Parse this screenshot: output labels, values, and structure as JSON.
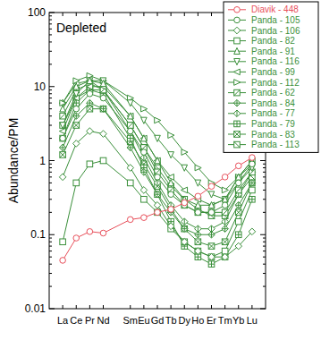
{
  "chart_data": {
    "type": "line",
    "log": "y",
    "legend": "top-right",
    "annotations": [
      "Depleted"
    ],
    "y_label": "Abundance/PM",
    "x": [
      57,
      58,
      59,
      60,
      62,
      63,
      64,
      65,
      66,
      67,
      68,
      69,
      70,
      71
    ],
    "xlim": [
      56,
      72
    ],
    "xticks": [
      {
        "value": 57,
        "label": "La"
      },
      {
        "value": 58,
        "label": "Ce"
      },
      {
        "value": 59,
        "label": "Pr"
      },
      {
        "value": 60,
        "label": "Nd"
      },
      {
        "value": 62,
        "label": "Sm"
      },
      {
        "value": 63,
        "label": "Eu"
      },
      {
        "value": 64,
        "label": "Gd"
      },
      {
        "value": 65,
        "label": "Tb"
      },
      {
        "value": 66,
        "label": "Dy"
      },
      {
        "value": 67,
        "label": "Ho"
      },
      {
        "value": 68,
        "label": "Er"
      },
      {
        "value": 69,
        "label": "Tm"
      },
      {
        "value": 70,
        "label": "Yb"
      },
      {
        "value": 71,
        "label": "Lu"
      }
    ],
    "ylim": [
      0.01,
      100
    ],
    "yticks": [
      0.01,
      0.1,
      1,
      10,
      100
    ],
    "series": [
      {
        "name": "Diavik - 448",
        "color": "#e8505b",
        "marker": "circle",
        "values": [
          0.045,
          0.09,
          0.11,
          0.105,
          0.16,
          0.17,
          0.2,
          0.22,
          0.27,
          0.33,
          0.45,
          0.6,
          0.85,
          1.1
        ]
      },
      {
        "name": "Panda - 105",
        "color": "#3a8f3a",
        "marker": "circle",
        "values": [
          2,
          5,
          8,
          7,
          2.5,
          1.3,
          0.6,
          0.35,
          0.25,
          0.2,
          0.2,
          0.25,
          0.5,
          0.9
        ]
      },
      {
        "name": "Panda - 106",
        "color": "#3a8f3a",
        "marker": "diamond",
        "values": [
          0.6,
          1.7,
          2.5,
          2.3,
          0.8,
          0.4,
          0.25,
          0.13,
          0.08,
          0.06,
          0.05,
          0.05,
          0.07,
          0.11
        ]
      },
      {
        "name": "Panda - 82",
        "color": "#3a8f3a",
        "marker": "square",
        "values": [
          0.08,
          0.5,
          0.9,
          1.0,
          0.5,
          0.3,
          0.2,
          0.12,
          0.08,
          0.06,
          0.05,
          0.06,
          0.15,
          0.4
        ]
      },
      {
        "name": "Panda - 91",
        "color": "#3a8f3a",
        "marker": "triangle-up",
        "values": [
          5,
          10,
          12,
          11,
          4,
          2,
          1,
          0.5,
          0.3,
          0.25,
          0.25,
          0.3,
          0.6,
          1.0
        ]
      },
      {
        "name": "Panda - 116",
        "color": "#3a8f3a",
        "marker": "triangle-down",
        "values": [
          3,
          8,
          12,
          12,
          6,
          3.5,
          2,
          1.2,
          0.8,
          0.5,
          0.35,
          0.3,
          0.5,
          0.8
        ]
      },
      {
        "name": "Panda - 99",
        "color": "#3a8f3a",
        "marker": "triangle-left",
        "values": [
          2.5,
          7,
          10,
          10,
          4,
          2,
          1,
          0.6,
          0.4,
          0.3,
          0.25,
          0.3,
          0.6,
          1.0
        ]
      },
      {
        "name": "Panda - 112",
        "color": "#3a8f3a",
        "marker": "triangle-right",
        "values": [
          6,
          12,
          14,
          12,
          7,
          5,
          3.5,
          2.2,
          1.3,
          0.8,
          0.5,
          0.4,
          0.6,
          0.9
        ]
      },
      {
        "name": "Panda - 62",
        "color": "#3a8f3a",
        "marker": "square-slash",
        "values": [
          4,
          9,
          11,
          9,
          3,
          1.5,
          0.7,
          0.4,
          0.25,
          0.2,
          0.2,
          0.2,
          0.4,
          0.7
        ]
      },
      {
        "name": "Panda - 84",
        "color": "#3a8f3a",
        "marker": "diamond-plus",
        "values": [
          1.5,
          4,
          6,
          5,
          1.5,
          0.7,
          0.35,
          0.2,
          0.12,
          0.1,
          0.1,
          0.12,
          0.25,
          0.5
        ]
      },
      {
        "name": "Panda - 77",
        "color": "#3a8f3a",
        "marker": "diamond-line",
        "values": [
          6,
          11,
          12,
          9,
          2.5,
          1.1,
          0.5,
          0.25,
          0.15,
          0.12,
          0.12,
          0.15,
          0.35,
          0.7
        ]
      },
      {
        "name": "Panda - 79",
        "color": "#3a8f3a",
        "marker": "square-plus",
        "values": [
          2,
          6,
          9,
          8,
          2,
          0.8,
          0.35,
          0.15,
          0.07,
          0.05,
          0.04,
          0.05,
          0.1,
          0.3
        ]
      },
      {
        "name": "Panda - 83",
        "color": "#3a8f3a",
        "marker": "square-x",
        "values": [
          1.2,
          3,
          5,
          5,
          1.8,
          0.9,
          0.45,
          0.22,
          0.12,
          0.08,
          0.07,
          0.08,
          0.2,
          0.5
        ]
      },
      {
        "name": "Panda - 113",
        "color": "#3a8f3a",
        "marker": "square-backslash",
        "values": [
          3,
          7,
          9,
          9,
          3,
          1.5,
          0.8,
          0.45,
          0.3,
          0.22,
          0.18,
          0.18,
          0.35,
          0.6
        ]
      }
    ]
  }
}
